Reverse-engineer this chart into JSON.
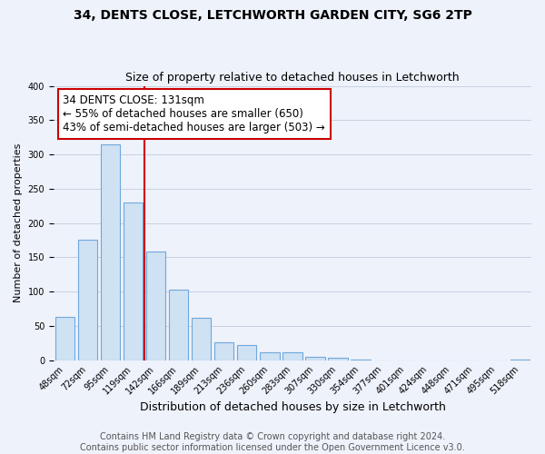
{
  "title1": "34, DENTS CLOSE, LETCHWORTH GARDEN CITY, SG6 2TP",
  "title2": "Size of property relative to detached houses in Letchworth",
  "xlabel": "Distribution of detached houses by size in Letchworth",
  "ylabel": "Number of detached properties",
  "bar_labels": [
    "48sqm",
    "72sqm",
    "95sqm",
    "119sqm",
    "142sqm",
    "166sqm",
    "189sqm",
    "213sqm",
    "236sqm",
    "260sqm",
    "283sqm",
    "307sqm",
    "330sqm",
    "354sqm",
    "377sqm",
    "401sqm",
    "424sqm",
    "448sqm",
    "471sqm",
    "495sqm",
    "518sqm"
  ],
  "bar_values": [
    63,
    175,
    315,
    230,
    158,
    103,
    62,
    26,
    22,
    12,
    12,
    5,
    3,
    1,
    0,
    0,
    0,
    0,
    0,
    0,
    1
  ],
  "bar_color": "#cfe2f3",
  "bar_edge_color": "#6fa8dc",
  "vline_x": 3.5,
  "vline_color": "#cc0000",
  "annotation_text": "34 DENTS CLOSE: 131sqm\n← 55% of detached houses are smaller (650)\n43% of semi-detached houses are larger (503) →",
  "annotation_box_color": "white",
  "annotation_box_edge_color": "#cc0000",
  "ylim": [
    0,
    400
  ],
  "yticks": [
    0,
    50,
    100,
    150,
    200,
    250,
    300,
    350,
    400
  ],
  "grid_color": "#c8d0e0",
  "bg_color": "#eef2fb",
  "footer_text": "Contains HM Land Registry data © Crown copyright and database right 2024.\nContains public sector information licensed under the Open Government Licence v3.0.",
  "title_fontsize": 10,
  "subtitle_fontsize": 9,
  "xlabel_fontsize": 9,
  "ylabel_fontsize": 8,
  "tick_fontsize": 7,
  "annotation_fontsize": 8.5,
  "footer_fontsize": 7
}
